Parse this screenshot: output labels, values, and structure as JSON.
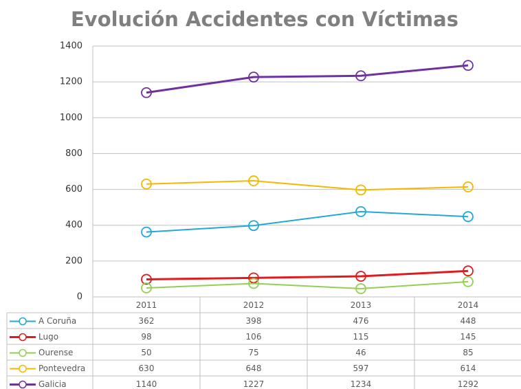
{
  "chart_data": {
    "type": "line",
    "title": "Evolución Accidentes con Víctimas",
    "categories": [
      "2011",
      "2012",
      "2013",
      "2014"
    ],
    "series": [
      {
        "name": "A Coruña",
        "color": "#1fa8d8",
        "values": [
          362,
          398,
          476,
          448
        ]
      },
      {
        "name": "Lugo",
        "color": "#e31a1c",
        "values": [
          98,
          106,
          115,
          145
        ]
      },
      {
        "name": "Ourense",
        "color": "#92d050",
        "values": [
          50,
          75,
          46,
          85
        ]
      },
      {
        "name": "Pontevedra",
        "color": "#f5b800",
        "values": [
          630,
          648,
          597,
          614
        ]
      },
      {
        "name": "Galicia",
        "color": "#7030a0",
        "values": [
          1140,
          1227,
          1234,
          1292
        ]
      }
    ],
    "ylim": [
      0,
      1400
    ],
    "yticks": [
      0,
      200,
      400,
      600,
      800,
      1000,
      1200,
      1400
    ],
    "grid": true,
    "data_table": true
  }
}
